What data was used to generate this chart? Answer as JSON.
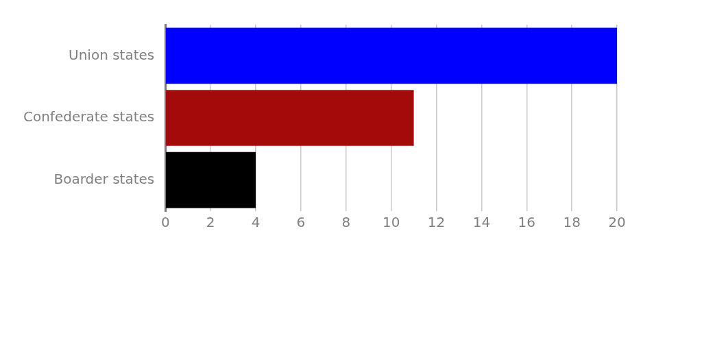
{
  "chart_data": {
    "type": "bar",
    "orientation": "horizontal",
    "categories": [
      "Union states",
      "Confederate states",
      "Boarder states"
    ],
    "values": [
      20,
      11,
      4
    ],
    "colors": [
      "#0000ff",
      "#a30b0b",
      "#000000"
    ],
    "xlim": [
      0,
      20
    ],
    "xticks": [
      0,
      2,
      4,
      6,
      8,
      10,
      12,
      14,
      16,
      18,
      20
    ],
    "grid": "x",
    "legend": false
  }
}
